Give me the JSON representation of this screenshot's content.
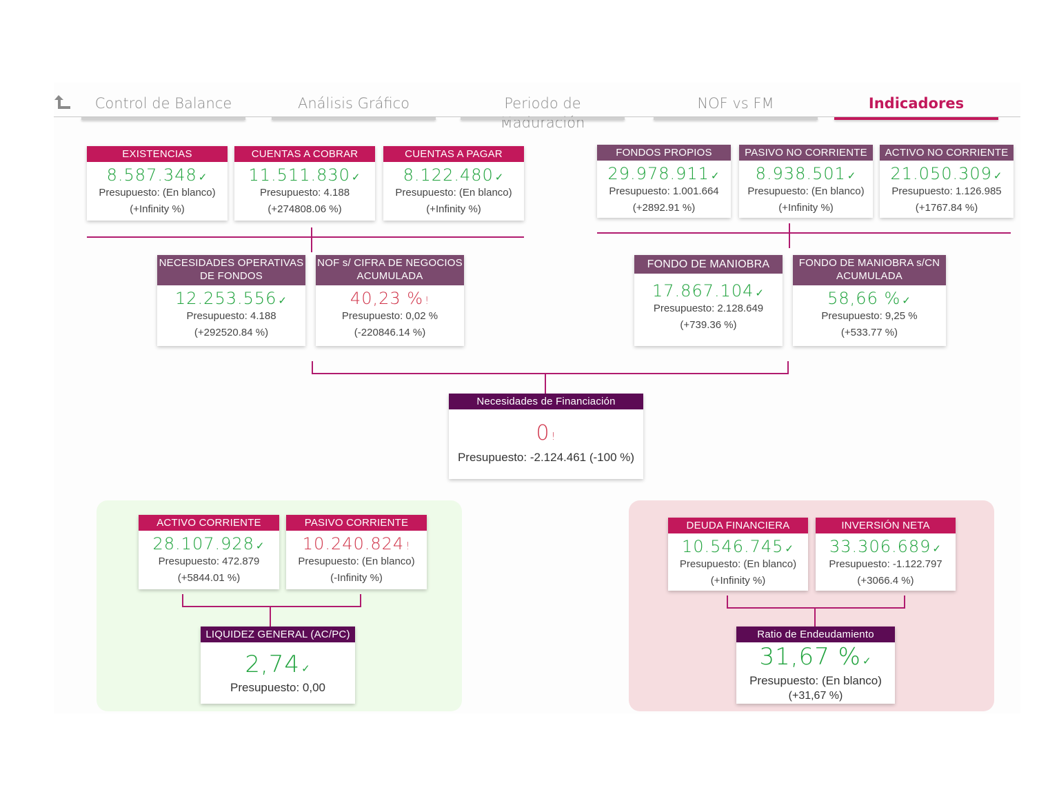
{
  "nav": {
    "back_icon": "back-arrow-icon",
    "tabs": [
      {
        "label": "Control de Balance",
        "active": false
      },
      {
        "label": "Análisis Gráfico",
        "active": false
      },
      {
        "label": "Periodo de Maduración",
        "active": false
      },
      {
        "label": "NOF vs FM",
        "active": false
      },
      {
        "label": "Indicadores",
        "active": true
      }
    ]
  },
  "colors": {
    "accent": "#c2185b",
    "header_mauve": "#7b4a6e",
    "header_plum": "#5c0b54",
    "positive": "#1fa23c",
    "negative": "#d0344a",
    "connector": "#b01a6e",
    "panel_green": "#eefbe9",
    "panel_red": "#f6dde0"
  },
  "cards": {
    "existencias": {
      "title": "EXISTENCIAS",
      "value": "8.587.348",
      "mark": "✓",
      "budget": "Presupuesto: (En blanco)",
      "change": "(+Infinity %)"
    },
    "cuentas_cobrar": {
      "title": "CUENTAS A COBRAR",
      "value": "11.511.830",
      "mark": "✓",
      "budget": "Presupuesto: 4.188",
      "change": "(+274808.06 %)"
    },
    "cuentas_pagar": {
      "title": "CUENTAS A PAGAR",
      "value": "8.122.480",
      "mark": "✓",
      "budget": "Presupuesto: (En blanco)",
      "change": "(+Infinity %)"
    },
    "fondos_propios": {
      "title": "FONDOS PROPIOS",
      "value": "29.978.911",
      "mark": "✓",
      "budget": "Presupuesto: 1.001.664",
      "change": "(+2892.91 %)"
    },
    "pasivo_no_corriente": {
      "title": "PASIVO NO CORRIENTE",
      "value": "8.938.501",
      "mark": "✓",
      "budget": "Presupuesto: (En blanco)",
      "change": "(+Infinity %)"
    },
    "activo_no_corriente": {
      "title": "ACTIVO NO CORRIENTE",
      "value": "21.050.309",
      "mark": "✓",
      "budget": "Presupuesto: 1.126.985",
      "change": "(+1767.84 %)"
    },
    "nof": {
      "title_1": "NECESIDADES OPERATIVAS",
      "title_2": "DE FONDOS",
      "value": "12.253.556",
      "mark": "✓",
      "budget": "Presupuesto: 4.188",
      "change": "(+292520.84 %)"
    },
    "nof_cn": {
      "title_1": "NOF s/ CIFRA DE NEGOCIOS",
      "title_2": "ACUMULADA",
      "value": "40,23 %",
      "mark": "!",
      "budget": "Presupuesto: 0,02 %",
      "change": "(-220846.14 %)"
    },
    "fondo_maniobra": {
      "title": "FONDO DE MANIOBRA",
      "value": "17.867.104",
      "mark": "✓",
      "budget": "Presupuesto: 2.128.649",
      "change": "(+739.36 %)"
    },
    "fm_cn": {
      "title_1": "FONDO DE MANIOBRA s/CN",
      "title_2": "ACUMULADA",
      "value": "58,66 %",
      "mark": "✓",
      "budget": "Presupuesto: 9,25 %",
      "change": "(+533.77 %)"
    },
    "necesidades_financiacion": {
      "title": "Necesidades de Financiación",
      "value": "0",
      "mark": "!",
      "budget": "Presupuesto: -2.124.461 (-100 %)"
    },
    "activo_corriente": {
      "title": "ACTIVO CORRIENTE",
      "value": "28.107.928",
      "mark": "✓",
      "budget": "Presupuesto: 472.879",
      "change": "(+5844.01 %)"
    },
    "pasivo_corriente": {
      "title": "PASIVO CORRIENTE",
      "value": "10.240.824",
      "mark": "!",
      "budget": "Presupuesto: (En blanco)",
      "change": "(-Infinity %)"
    },
    "liquidez": {
      "title": "LIQUIDEZ GENERAL (AC/PC)",
      "value": "2,74",
      "mark": "✓",
      "budget": "Presupuesto: 0,00"
    },
    "deuda_financiera": {
      "title": "DEUDA FINANCIERA",
      "value": "10.546.745",
      "mark": "✓",
      "budget": "Presupuesto: (En blanco)",
      "change": "(+Infinity %)"
    },
    "inversion_neta": {
      "title": "INVERSIÓN NETA",
      "value": "33.306.689",
      "mark": "✓",
      "budget": "Presupuesto: -1.122.797",
      "change": "(+3066.4 %)"
    },
    "ratio_endeudamiento": {
      "title": "Ratio de Endeudamiento",
      "value": "31,67 %",
      "mark": "✓",
      "budget": "Presupuesto: (En blanco)",
      "change": "(+31,67 %)"
    }
  }
}
